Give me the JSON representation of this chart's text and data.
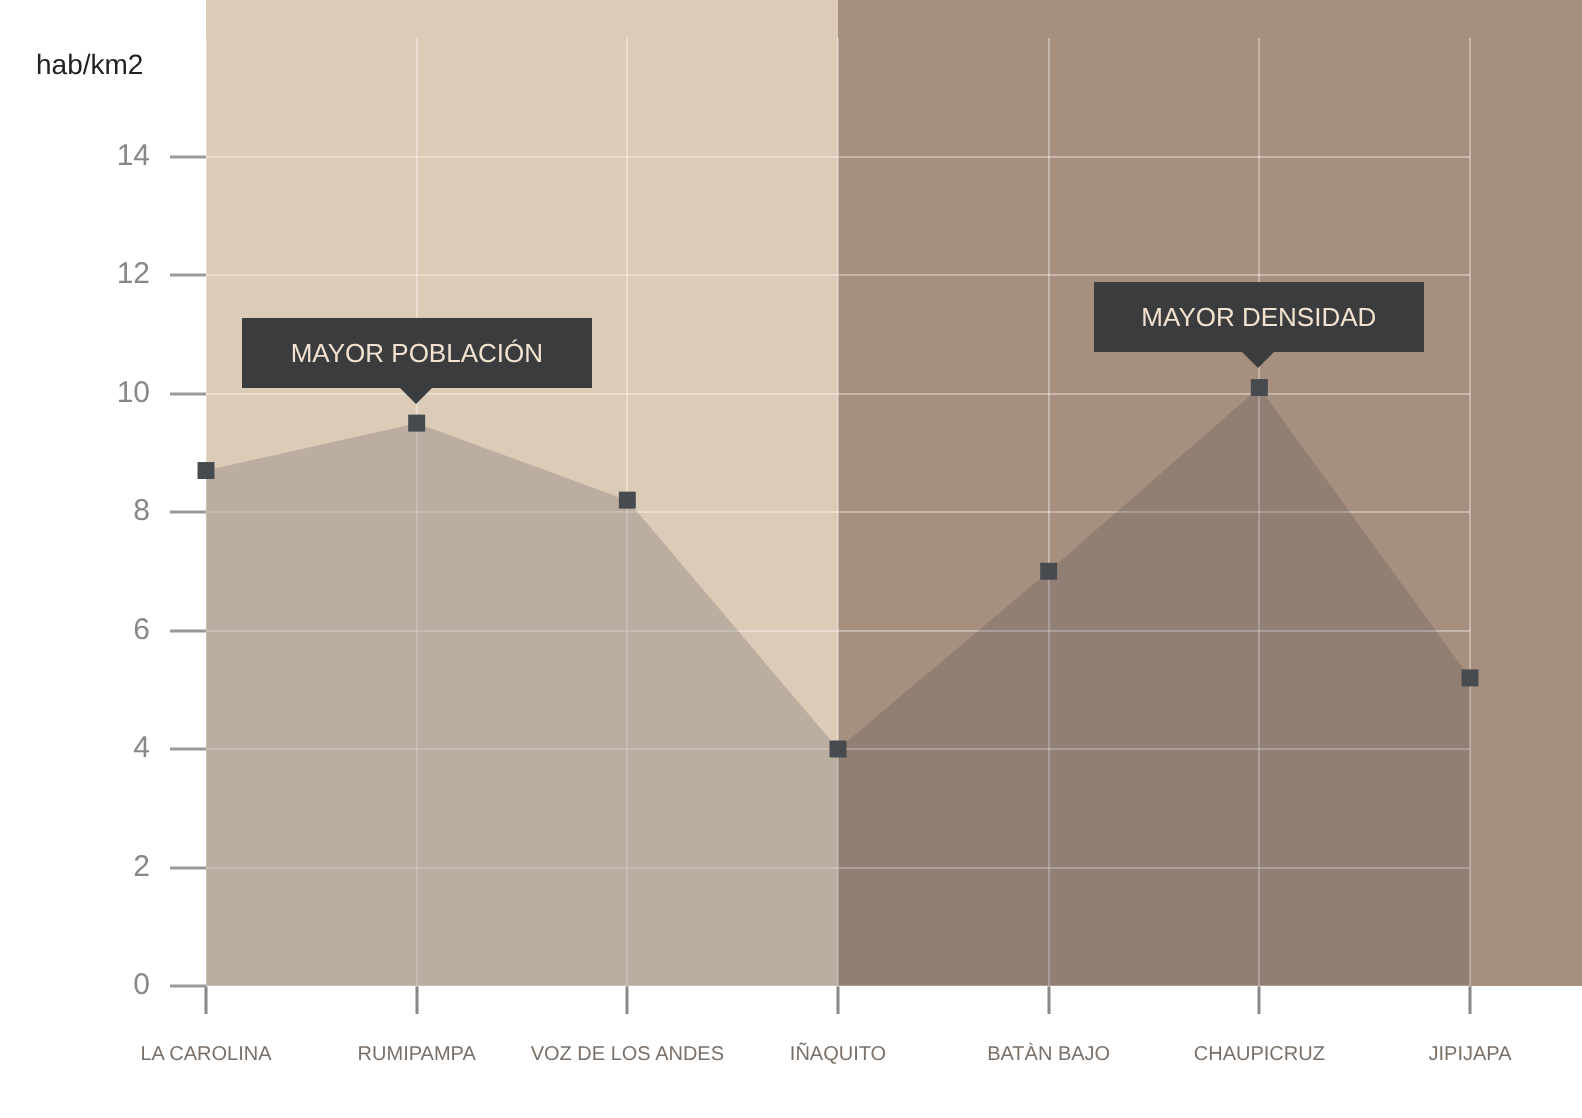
{
  "chart_data": {
    "type": "area",
    "ylabel": "hab/km2",
    "categories": [
      "LA CAROLINA",
      "RUMIPAMPA",
      "VOZ DE LOS ANDES",
      "IÑAQUITO",
      "BATÀN BAJO",
      "CHAUPICRUZ",
      "JIPIJAPA"
    ],
    "series": [
      {
        "color": "#474b50",
        "values": [
          8.7,
          9.5,
          8.2,
          4.0,
          7.0,
          10.1,
          5.2
        ]
      }
    ],
    "ylim": [
      0,
      16
    ],
    "yticks": [
      0,
      2,
      4,
      6,
      8,
      10,
      12,
      14
    ],
    "bands": [
      {
        "axis": "x",
        "from": "LA CAROLINA",
        "to": "IÑAQUITO",
        "color": "#dccbb7"
      },
      {
        "axis": "x",
        "from": "IÑAQUITO",
        "to": "JIPIJAPA",
        "color": "#a68f7e"
      }
    ],
    "annotations": [
      {
        "text": "MAYOR POBLACIÓN",
        "x": "RUMIPAMPA",
        "y": 9.5
      },
      {
        "text": "MAYOR DENSIDAD",
        "x": "CHAUPICRUZ",
        "y": 10.1
      }
    ],
    "marker": "square",
    "grid": true,
    "legend": false
  }
}
